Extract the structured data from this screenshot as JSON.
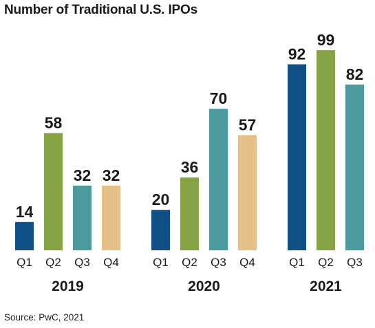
{
  "title": "Number of Traditional U.S. IPOs",
  "source": "Source: PwC, 2021",
  "chart_data": {
    "type": "bar",
    "title": "Number of Traditional U.S. IPOs",
    "groups": [
      {
        "year": "2019",
        "bars": [
          {
            "quarter": "Q1",
            "value": 14
          },
          {
            "quarter": "Q2",
            "value": 58
          },
          {
            "quarter": "Q3",
            "value": 32
          },
          {
            "quarter": "Q4",
            "value": 32
          }
        ]
      },
      {
        "year": "2020",
        "bars": [
          {
            "quarter": "Q1",
            "value": 20
          },
          {
            "quarter": "Q2",
            "value": 36
          },
          {
            "quarter": "Q3",
            "value": 70
          },
          {
            "quarter": "Q4",
            "value": 57
          }
        ]
      },
      {
        "year": "2021",
        "bars": [
          {
            "quarter": "Q1",
            "value": 92
          },
          {
            "quarter": "Q2",
            "value": 99
          },
          {
            "quarter": "Q3",
            "value": 82
          }
        ]
      }
    ],
    "quarter_colors": {
      "Q1": "#0f4f86",
      "Q2": "#86a445",
      "Q3": "#4a9a9e",
      "Q4": "#e6c089"
    },
    "xlabel": "",
    "ylabel": "",
    "grid": false,
    "legend": "none"
  }
}
